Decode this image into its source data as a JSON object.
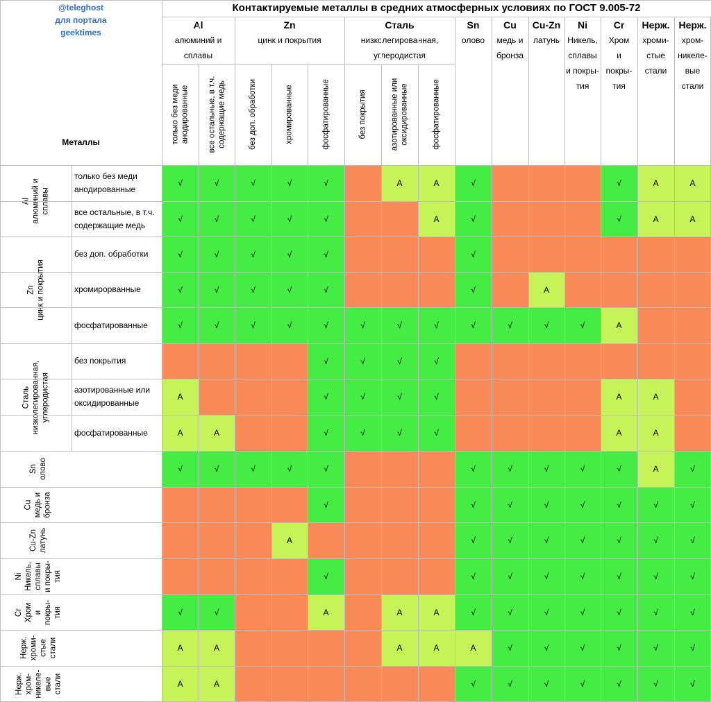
{
  "title": "Контактируемые металлы в средних атмосферных условиях по ГОСТ 9.005-72",
  "credit": [
    "@teleghost",
    "для портала",
    "geektimes"
  ],
  "metals_label": "Металлы",
  "colors": {
    "compatible": "#44ec44",
    "conditional": "#c6f357",
    "incompatible": "#fa8a58",
    "grid": "#bdbdbd",
    "credit": "#2f6fd0"
  },
  "legend_codes": {
    "G": "√",
    "A": "A",
    "O": ""
  },
  "column_groups": [
    {
      "symbol": "Al",
      "name": [
        "алюминий и",
        "сплавы"
      ]
    },
    {
      "symbol": "Zn",
      "name": [
        "цинк и покрытия"
      ]
    },
    {
      "symbol": "Сталь",
      "name": [
        "низколегированная,",
        "углеродистая"
      ]
    },
    {
      "symbol": "Sn",
      "name": [
        "олово"
      ]
    },
    {
      "symbol": "Cu",
      "name": [
        "медь и",
        "бронза"
      ]
    },
    {
      "symbol": "Cu-Zn",
      "name": [
        "латунь"
      ]
    },
    {
      "symbol": "Ni",
      "name": [
        "Никель,",
        "сплавы",
        "и покры-",
        "тия"
      ]
    },
    {
      "symbol": "Cr",
      "name": [
        "Хром",
        "и",
        "покры-",
        "тия"
      ]
    },
    {
      "symbol": "Нерж.",
      "name": [
        "хроми-",
        "стые",
        "стали"
      ]
    },
    {
      "symbol": "Нерж.",
      "name": [
        "хром-",
        "никеле-",
        "вые",
        "стали"
      ]
    }
  ],
  "column_subheaders": [
    [
      "только без меди",
      "анодированные"
    ],
    [
      "все остальные, в т.ч.",
      "содержащие медь"
    ],
    [
      "без доп. обработки"
    ],
    [
      "хромированные"
    ],
    [
      "фосфатированные"
    ],
    [
      "без покрытия"
    ],
    [
      "азотированные или",
      "оксидированные"
    ],
    [
      "фосфатированные"
    ]
  ],
  "row_groups": [
    {
      "label": [
        "Al",
        "алюминий и",
        "сплавы"
      ],
      "rows": [
        [
          "только без меди",
          "анодированные"
        ],
        [
          "все остальные, в т.ч.",
          "содержащие медь"
        ]
      ]
    },
    {
      "label": [
        "Zn",
        "цинк и покрытия"
      ],
      "rows": [
        [
          "без доп. обработки"
        ],
        [
          "хромирорванные"
        ],
        [
          "фосфатированные"
        ]
      ]
    },
    {
      "label": [
        "Сталь",
        "низколегированная,",
        "углеродистая"
      ],
      "rows": [
        [
          "без покрытия"
        ],
        [
          "азотированные или",
          "оксидированные"
        ],
        [
          "фосфатированные"
        ]
      ]
    },
    {
      "label": [
        "Sn",
        "олово"
      ],
      "rows": null
    },
    {
      "label": [
        "Cu",
        "медь и",
        "бронза"
      ],
      "rows": null
    },
    {
      "label": [
        "Cu-Zn",
        "латунь"
      ],
      "rows": null
    },
    {
      "label": [
        "Ni",
        "Никель,",
        "сплавы",
        "и покры-",
        "тия"
      ],
      "rows": null
    },
    {
      "label": [
        "Cr",
        "Хром",
        "и",
        "покры-",
        "тия"
      ],
      "rows": null
    },
    {
      "label": [
        "Нерж.",
        "хроми-",
        "стые",
        "стали"
      ],
      "rows": null
    },
    {
      "label": [
        "Нерж.",
        "хром-",
        "никеле-",
        "вые",
        "стали"
      ],
      "rows": null
    }
  ],
  "matrix": [
    [
      "G",
      "G",
      "G",
      "G",
      "G",
      "O",
      "A",
      "A",
      "G",
      "O",
      "O",
      "O",
      "G",
      "A",
      "A"
    ],
    [
      "G",
      "G",
      "G",
      "G",
      "G",
      "O",
      "O",
      "A",
      "G",
      "O",
      "O",
      "O",
      "G",
      "A",
      "A"
    ],
    [
      "G",
      "G",
      "G",
      "G",
      "G",
      "O",
      "O",
      "O",
      "G",
      "O",
      "O",
      "O",
      "O",
      "O",
      "O"
    ],
    [
      "G",
      "G",
      "G",
      "G",
      "G",
      "O",
      "O",
      "O",
      "G",
      "O",
      "A",
      "O",
      "O",
      "O",
      "O"
    ],
    [
      "G",
      "G",
      "G",
      "G",
      "G",
      "G",
      "G",
      "G",
      "G",
      "G",
      "G",
      "G",
      "A",
      "O",
      "O"
    ],
    [
      "O",
      "O",
      "O",
      "O",
      "G",
      "G",
      "G",
      "G",
      "O",
      "O",
      "O",
      "O",
      "O",
      "O",
      "O"
    ],
    [
      "A",
      "O",
      "O",
      "O",
      "G",
      "G",
      "G",
      "G",
      "O",
      "O",
      "O",
      "O",
      "A",
      "A",
      "O"
    ],
    [
      "A",
      "A",
      "O",
      "O",
      "G",
      "G",
      "G",
      "G",
      "O",
      "O",
      "O",
      "O",
      "A",
      "A",
      "O"
    ],
    [
      "G",
      "G",
      "G",
      "G",
      "G",
      "O",
      "O",
      "O",
      "G",
      "G",
      "G",
      "G",
      "G",
      "A",
      "G"
    ],
    [
      "O",
      "O",
      "O",
      "O",
      "G",
      "O",
      "O",
      "O",
      "G",
      "G",
      "G",
      "G",
      "G",
      "G",
      "G"
    ],
    [
      "O",
      "O",
      "O",
      "A",
      "O",
      "O",
      "O",
      "O",
      "G",
      "G",
      "G",
      "G",
      "G",
      "G",
      "G"
    ],
    [
      "O",
      "O",
      "O",
      "O",
      "G",
      "O",
      "O",
      "O",
      "G",
      "G",
      "G",
      "G",
      "G",
      "G",
      "G"
    ],
    [
      "G",
      "G",
      "O",
      "O",
      "A",
      "O",
      "A",
      "A",
      "G",
      "G",
      "G",
      "G",
      "G",
      "G",
      "G"
    ],
    [
      "A",
      "A",
      "O",
      "O",
      "O",
      "O",
      "A",
      "A",
      "A",
      "G",
      "G",
      "G",
      "G",
      "G",
      "G"
    ],
    [
      "A",
      "A",
      "O",
      "O",
      "O",
      "O",
      "O",
      "O",
      "G",
      "G",
      "G",
      "G",
      "G",
      "G",
      "G"
    ]
  ]
}
